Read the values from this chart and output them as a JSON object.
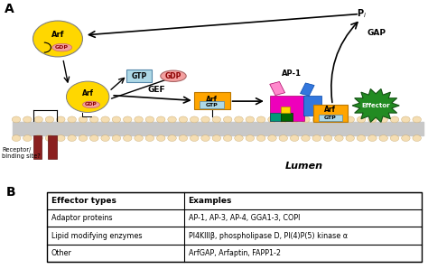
{
  "panel_a_label": "A",
  "panel_b_label": "B",
  "table_headers": [
    "Effector types",
    "Examples"
  ],
  "table_rows": [
    [
      "Adaptor proteins",
      "AP-1, AP-3, AP-4, GGA1-3, COPI"
    ],
    [
      "Lipid modifying enzymes",
      "PI4KIIIβ, phospholipase D, PI(4)P(5) kinase α"
    ],
    [
      "Other",
      "ArfGAP, Arfaptin, FAPP1-2"
    ]
  ],
  "lumen_text": "Lumen",
  "receptor_text": "Receptor/\nbinding site?",
  "gef_text": "GEF",
  "gap_text": "GAP",
  "pi_text": "P$_i$",
  "ap1_text": "AP-1",
  "effector_text": "Effector",
  "gtp_box_text": "GTP",
  "gdp_box_text": "GDP",
  "arf_text": "Arf",
  "gtp_text": "GTP",
  "gdp_text": "GDP",
  "yellow_color": "#FFD700",
  "orange_color": "#FFA500",
  "gdp_oval_color": "#F4A0A0",
  "gtp_box_color": "#ADD8E6",
  "gdp_box_color": "#F4A0A0",
  "membrane_fill_color": "#D8C090",
  "membrane_circle_color": "#F5DEB3",
  "bg_color": "#FFFFFF",
  "receptor_color": "#8B2020",
  "magenta_color": "#EE00BB",
  "blue_color": "#3377DD",
  "green_color": "#228B22",
  "teal_color": "#009977",
  "dark_green": "#006600",
  "small_yellow": "#FFD700",
  "pink_color": "#FF88CC",
  "table_border_color": "#000000",
  "text_color": "#000000"
}
